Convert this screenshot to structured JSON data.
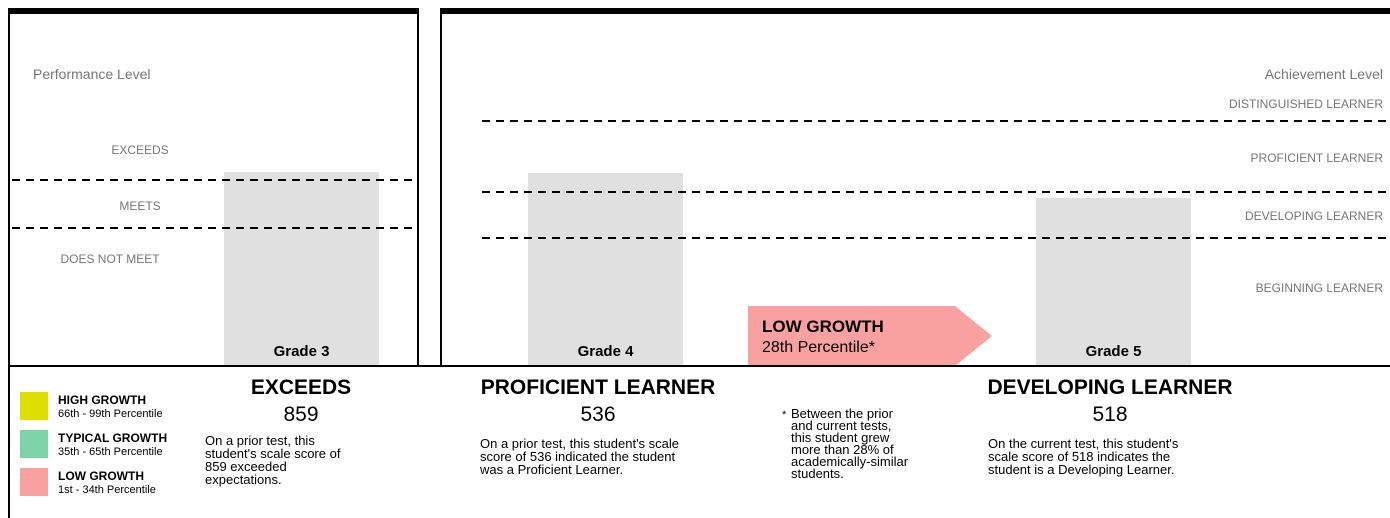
{
  "left_panel": {
    "title": "Performance Level",
    "levels": [
      "EXCEEDS",
      "MEETS",
      "DOES NOT MEET"
    ]
  },
  "right_panel": {
    "title": "Achievement Level",
    "levels": [
      "DISTINGUISHED LEARNER",
      "PROFICIENT LEARNER",
      "DEVELOPING LEARNER",
      "BEGINNING LEARNER"
    ]
  },
  "grades": [
    {
      "label": "Grade 3",
      "level": "EXCEEDS",
      "score": 859,
      "description": [
        "On a prior test, this",
        "student's scale score of",
        "859 exceeded",
        "expectations."
      ]
    },
    {
      "label": "Grade 4",
      "level": "PROFICIENT LEARNER",
      "score": 536,
      "description": [
        "On a prior test, this student's scale",
        "score of 536 indicated the student",
        "was a Proficient Learner."
      ]
    },
    {
      "label": "Grade 5",
      "level": "DEVELOPING LEARNER",
      "score": 518,
      "description": [
        "On the current test, this student's",
        "scale score of 518 indicates the",
        "student is a Developing Learner."
      ]
    }
  ],
  "growth": {
    "label": "LOW GROWTH",
    "percentile": "28th Percentile*",
    "color": "#f9a0a0",
    "footnote_mark": "*",
    "footnote": [
      "Between the prior",
      "and current tests,",
      "this student grew",
      "more than 28% of",
      "academically-similar",
      "students."
    ]
  },
  "legend": [
    {
      "name": "HIGH GROWTH",
      "range": "66th - 99th Percentile",
      "color": "#dede00"
    },
    {
      "name": "TYPICAL GROWTH",
      "range": "35th - 65th Percentile",
      "color": "#7dd3a8"
    },
    {
      "name": "LOW GROWTH",
      "range": "1st - 34th Percentile",
      "color": "#f9a0a0"
    }
  ]
}
